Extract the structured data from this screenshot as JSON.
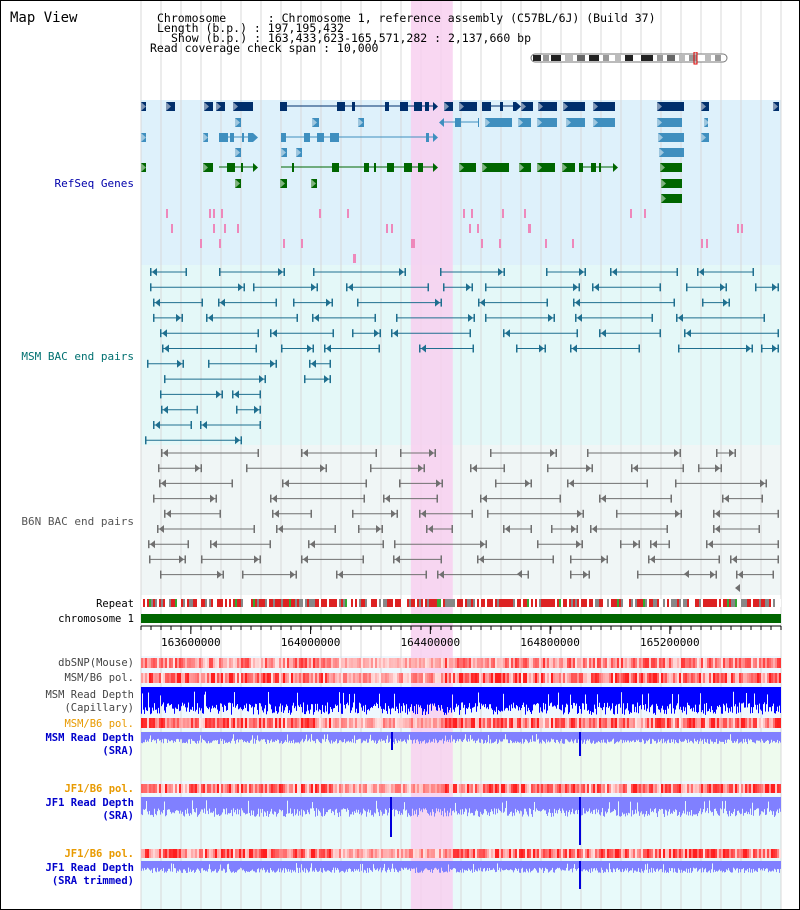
{
  "app_title": "Map View",
  "header": {
    "chromosome_label": "Chromosome      : Chromosome 1, reference assembly (C57BL/6J) (Build 37)",
    "length_label": "Length (b.p.) : 197,195,432",
    "show_label": "Show (b.p.) : 163,433,623-165,571,282 : 2,137,660 bp",
    "coverage_label": "Read coverage check span : 10,000"
  },
  "tracks": {
    "refseq": {
      "label": "RefSeq Genes",
      "color": "#0000aa"
    },
    "msm_bac": {
      "label": "MSM BAC end pairs",
      "color": "#007070"
    },
    "b6n_bac": {
      "label": "B6N BAC end pairs",
      "color": "#555555"
    },
    "repeat": {
      "label": "Repeat",
      "color": "#000000"
    },
    "chromosome": {
      "label": "chromosome 1",
      "color": "#000000"
    },
    "dbsnp": {
      "label": "dbSNP(Mouse)",
      "color": "#444444"
    },
    "msm_pol1": {
      "label": "MSM/B6 pol.",
      "color": "#444444"
    },
    "msm_depth_cap": {
      "label_line1": "MSM Read Depth",
      "label_line2": "(Capillary)",
      "color": "#444444"
    },
    "msm_pol2": {
      "label": "MSM/B6 pol.",
      "color": "#e89a00"
    },
    "msm_depth_sra": {
      "label_line1": "MSM Read Depth",
      "label_line2": "(SRA)",
      "color": "#0000cc"
    },
    "jf1_pol1": {
      "label": "JF1/B6 pol.",
      "color": "#e89a00"
    },
    "jf1_depth_sra": {
      "label_line1": "JF1 Read Depth",
      "label_line2": "(SRA)",
      "color": "#0000cc"
    },
    "jf1_pol2": {
      "label": "JF1/B6 pol.",
      "color": "#e89a00"
    },
    "jf1_depth_trim": {
      "label_line1": "JF1 Read Depth",
      "label_line2": "(SRA trimmed)",
      "color": "#0000cc"
    }
  },
  "axis": {
    "ticks": [
      {
        "value": 163600000,
        "label": "163600000"
      },
      {
        "value": 164000000,
        "label": "164000000"
      },
      {
        "value": 164400000,
        "label": "164400000"
      },
      {
        "value": 164800000,
        "label": "164800000"
      },
      {
        "value": 165200000,
        "label": "165200000"
      }
    ],
    "range_start": 163433623,
    "range_end": 165571282
  },
  "highlight": {
    "start": 164335000,
    "end": 164475000,
    "color": "#f8d0f0"
  },
  "colors": {
    "refseq_bg": "#def1fb",
    "msm_bg": "#e4f8f8",
    "b6n_bg": "#f0f6f6",
    "dark_gene": "#002f6c",
    "mid_gene": "#3f8fbf",
    "green_gene": "#006600",
    "pink_gene": "#ee88bb",
    "msm_pair": "#1f6f8f",
    "b6n_pair": "#707070",
    "repeat_red": "#dd2222",
    "repeat_gray": "#888888",
    "chrom_green": "#006600",
    "depth_blue": "#0000ff",
    "depth_light": "#8080ff",
    "pol_low": "#ffd0d0",
    "pol_high": "#ff3030"
  }
}
